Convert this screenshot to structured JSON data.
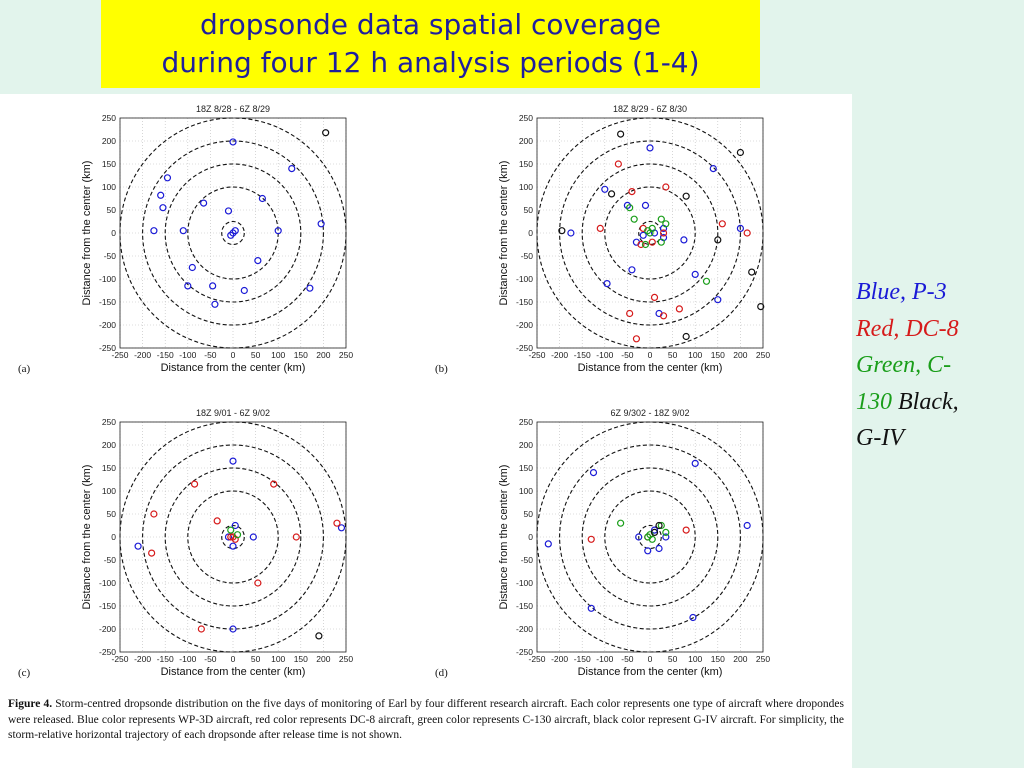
{
  "slide": {
    "title_line1": "dropsonde data spatial coverage",
    "title_line2": "during four 12 h analysis periods (1-4)",
    "background": "#e2f4ec",
    "title_bg": "#ffff00",
    "title_color": "#1f1f9e"
  },
  "legend": {
    "blue": "Blue, P-3",
    "red": "Red, DC-8",
    "green_line1": "Green, C-",
    "green_line2": "130",
    "black_a": "Black,",
    "black_b": "G-IV",
    "colors": {
      "blue": "#1a1ad6",
      "red": "#d61a1a",
      "green": "#1a9e1a",
      "black": "#111111"
    }
  },
  "caption": {
    "label": "Figure 4.",
    "text": " Storm-centred dropsonde distribution on the five days of monitoring of Earl by four different research aircraft. Each color represents one type of aircraft where dropondes were released. Blue color represents WP-3D aircraft, red color represents DC-8 aircraft, green color represents C-130 aircraft, black color represent G-IV aircraft. For simplicity, the storm-relative horizontal trajectory of each dropsonde after release time is not shown."
  },
  "chart_data": [
    {
      "type": "scatter",
      "panel_label": "(a)",
      "title": "18Z 8/28 - 6Z 8/29",
      "xlabel": "Distance from the center (km)",
      "ylabel": "Distance from the center (km)",
      "xlim": [
        -250,
        250
      ],
      "ylim": [
        -250,
        250
      ],
      "xticks": [
        -250,
        -200,
        -150,
        -100,
        -50,
        0,
        50,
        100,
        150,
        200,
        250
      ],
      "yticks": [
        250,
        200,
        150,
        100,
        50,
        0,
        -50,
        -100,
        -150,
        -200,
        -250
      ],
      "rings_km": [
        25,
        100,
        150,
        200,
        250
      ],
      "grid": true,
      "series": [
        {
          "color": "blue",
          "points": [
            [
              0,
              198
            ],
            [
              -145,
              120
            ],
            [
              -160,
              82
            ],
            [
              -155,
              55
            ],
            [
              -175,
              5
            ],
            [
              -110,
              5
            ],
            [
              -65,
              65
            ],
            [
              -10,
              48
            ],
            [
              65,
              75
            ],
            [
              130,
              140
            ],
            [
              195,
              20
            ],
            [
              100,
              5
            ],
            [
              -90,
              -75
            ],
            [
              -100,
              -115
            ],
            [
              -45,
              -115
            ],
            [
              -40,
              -155
            ],
            [
              25,
              -125
            ],
            [
              55,
              -60
            ],
            [
              170,
              -120
            ],
            [
              0,
              0
            ],
            [
              5,
              5
            ],
            [
              -5,
              -5
            ]
          ]
        },
        {
          "color": "black",
          "points": [
            [
              205,
              218
            ]
          ]
        }
      ]
    },
    {
      "type": "scatter",
      "panel_label": "(b)",
      "title": "18Z 8/29 - 6Z 8/30",
      "xlabel": "Distance from the center (km)",
      "ylabel": "Distance from the center (km)",
      "xlim": [
        -250,
        250
      ],
      "ylim": [
        -250,
        250
      ],
      "xticks": [
        -250,
        -200,
        -150,
        -100,
        -50,
        0,
        50,
        100,
        150,
        200,
        250
      ],
      "yticks": [
        250,
        200,
        150,
        100,
        50,
        0,
        -50,
        -100,
        -150,
        -200,
        -250
      ],
      "rings_km": [
        25,
        100,
        150,
        200,
        250
      ],
      "grid": true,
      "series": [
        {
          "color": "blue",
          "points": [
            [
              0,
              185
            ],
            [
              -100,
              95
            ],
            [
              -50,
              60
            ],
            [
              -10,
              60
            ],
            [
              140,
              140
            ],
            [
              -175,
              0
            ],
            [
              -95,
              -110
            ],
            [
              -40,
              -80
            ],
            [
              100,
              -90
            ],
            [
              150,
              -145
            ],
            [
              200,
              10
            ],
            [
              30,
              10
            ],
            [
              30,
              -10
            ],
            [
              -15,
              -5
            ],
            [
              10,
              0
            ],
            [
              -30,
              -20
            ],
            [
              75,
              -15
            ],
            [
              20,
              -175
            ]
          ]
        },
        {
          "color": "red",
          "points": [
            [
              -70,
              150
            ],
            [
              -40,
              90
            ],
            [
              35,
              100
            ],
            [
              -110,
              10
            ],
            [
              160,
              20
            ],
            [
              215,
              0
            ],
            [
              -45,
              -175
            ],
            [
              -30,
              -230
            ],
            [
              10,
              -140
            ],
            [
              65,
              -165
            ],
            [
              30,
              -180
            ],
            [
              -20,
              -25
            ],
            [
              30,
              0
            ],
            [
              -15,
              10
            ],
            [
              5,
              -20
            ]
          ]
        },
        {
          "color": "green",
          "points": [
            [
              -35,
              30
            ],
            [
              -45,
              55
            ],
            [
              25,
              30
            ],
            [
              0,
              0
            ],
            [
              -5,
              5
            ],
            [
              25,
              -20
            ],
            [
              -10,
              -25
            ],
            [
              5,
              10
            ],
            [
              35,
              20
            ],
            [
              125,
              -105
            ]
          ]
        },
        {
          "color": "black",
          "points": [
            [
              -65,
              215
            ],
            [
              -85,
              85
            ],
            [
              -195,
              5
            ],
            [
              80,
              80
            ],
            [
              200,
              175
            ],
            [
              225,
              -85
            ],
            [
              245,
              -160
            ],
            [
              150,
              -15
            ],
            [
              80,
              -225
            ]
          ]
        }
      ]
    },
    {
      "type": "scatter",
      "panel_label": "(c)",
      "title": "18Z 9/01 - 6Z 9/02",
      "xlabel": "Distance from the center (km)",
      "ylabel": "Distance from the center (km)",
      "xlim": [
        -250,
        250
      ],
      "ylim": [
        -250,
        250
      ],
      "xticks": [
        -250,
        -200,
        -150,
        -100,
        -50,
        0,
        50,
        100,
        150,
        200,
        250
      ],
      "yticks": [
        250,
        200,
        150,
        100,
        50,
        0,
        -50,
        -100,
        -150,
        -200,
        -250
      ],
      "rings_km": [
        25,
        100,
        150,
        200,
        250
      ],
      "grid": true,
      "series": [
        {
          "color": "blue",
          "points": [
            [
              0,
              165
            ],
            [
              -210,
              -20
            ],
            [
              240,
              20
            ],
            [
              0,
              -200
            ],
            [
              45,
              0
            ],
            [
              5,
              25
            ],
            [
              0,
              -20
            ],
            [
              -10,
              0
            ]
          ]
        },
        {
          "color": "red",
          "points": [
            [
              -85,
              115
            ],
            [
              -175,
              50
            ],
            [
              -180,
              -35
            ],
            [
              90,
              115
            ],
            [
              230,
              30
            ],
            [
              140,
              0
            ],
            [
              55,
              -100
            ],
            [
              -70,
              -200
            ],
            [
              -35,
              35
            ],
            [
              0,
              0
            ],
            [
              5,
              -5
            ],
            [
              -5,
              0
            ]
          ]
        },
        {
          "color": "green",
          "points": [
            [
              -5,
              15
            ],
            [
              10,
              5
            ]
          ]
        },
        {
          "color": "black",
          "points": [
            [
              190,
              -215
            ]
          ]
        }
      ]
    },
    {
      "type": "scatter",
      "panel_label": "(d)",
      "title": "6Z 9/302 - 18Z 9/02",
      "xlabel": "Distance from the center (km)",
      "ylabel": "Distance from the center (km)",
      "xlim": [
        -250,
        250
      ],
      "ylim": [
        -250,
        250
      ],
      "xticks": [
        -250,
        -200,
        -150,
        -100,
        -50,
        0,
        50,
        100,
        150,
        200,
        250
      ],
      "yticks": [
        250,
        200,
        150,
        100,
        50,
        0,
        -50,
        -100,
        -150,
        -200,
        -250
      ],
      "rings_km": [
        25,
        100,
        150,
        200,
        250
      ],
      "grid": true,
      "series": [
        {
          "color": "blue",
          "points": [
            [
              -125,
              140
            ],
            [
              100,
              160
            ],
            [
              -225,
              -15
            ],
            [
              215,
              25
            ],
            [
              -130,
              -155
            ],
            [
              95,
              -175
            ],
            [
              -25,
              0
            ],
            [
              -5,
              -30
            ],
            [
              20,
              -25
            ],
            [
              35,
              0
            ],
            [
              10,
              15
            ]
          ]
        },
        {
          "color": "red",
          "points": [
            [
              -130,
              -5
            ],
            [
              80,
              15
            ],
            [
              -5,
              0
            ]
          ]
        },
        {
          "color": "green",
          "points": [
            [
              -65,
              30
            ],
            [
              25,
              25
            ],
            [
              35,
              10
            ],
            [
              0,
              5
            ],
            [
              -5,
              0
            ],
            [
              5,
              -5
            ]
          ]
        },
        {
          "color": "black",
          "points": [
            [
              20,
              25
            ],
            [
              10,
              10
            ]
          ]
        }
      ]
    }
  ]
}
